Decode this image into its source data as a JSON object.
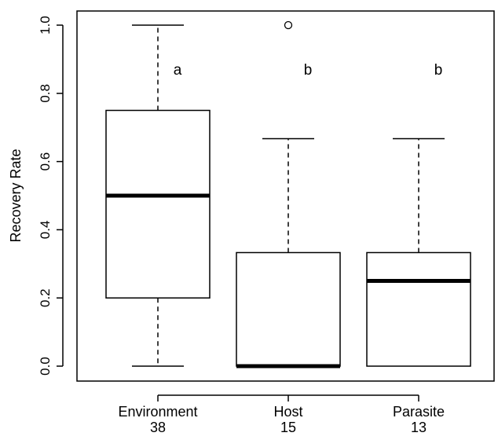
{
  "chart_data": {
    "type": "boxplot",
    "title": "",
    "xlabel": "",
    "ylabel": "Recovery Rate",
    "ylim": [
      0.0,
      1.0
    ],
    "yticks": [
      "0.0",
      "0.2",
      "0.4",
      "0.6",
      "0.8",
      "1.0"
    ],
    "grid": false,
    "categories": [
      {
        "name": "Environment",
        "n": "38",
        "letter": "a",
        "whisker_low": 0.0,
        "q1": 0.2,
        "median": 0.5,
        "q3": 0.75,
        "whisker_high": 1.0,
        "outliers": []
      },
      {
        "name": "Host",
        "n": "15",
        "letter": "b",
        "whisker_low": 0.0,
        "q1": 0.0,
        "median": 0.0,
        "q3": 0.333,
        "whisker_high": 0.667,
        "outliers": [
          1.0
        ]
      },
      {
        "name": "Parasite",
        "n": "13",
        "letter": "b",
        "whisker_low": 0.0,
        "q1": 0.0,
        "median": 0.25,
        "q3": 0.333,
        "whisker_high": 0.667,
        "outliers": []
      }
    ]
  }
}
